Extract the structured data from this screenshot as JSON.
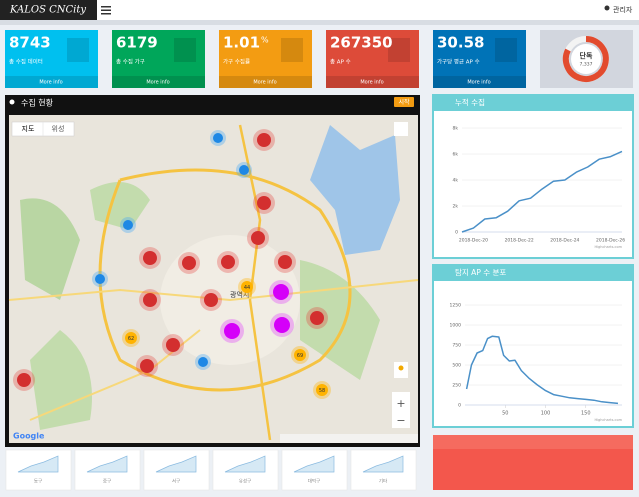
{
  "header": {
    "logo": "KALOS CNCity",
    "user": "관리자"
  },
  "stat_cards": [
    {
      "value": "8743",
      "label": "총 수집 데이터",
      "link": "More info"
    },
    {
      "value": "6179",
      "label": "총 수집 가구",
      "link": "More info"
    },
    {
      "value": "1.01",
      "unit": "%",
      "label": "가구 수집률",
      "link": "More info"
    },
    {
      "value": "267350",
      "label": "총 AP 수",
      "link": "More info"
    },
    {
      "value": "30.58",
      "label": "가구당 평균 AP 수",
      "link": "More info"
    }
  ],
  "gauge_card": {
    "label": "단독",
    "value": "7,337"
  },
  "map_panel": {
    "title": "수집 현황",
    "button": "시작",
    "tabs": [
      "지도",
      "위성"
    ],
    "city_label": "광역시",
    "clusters": [
      "44",
      "62",
      "69",
      "58"
    ],
    "attribution": "Google"
  },
  "charts": [
    {
      "type": "line",
      "title": "누적 수집",
      "categories": [
        null,
        "2018-Dec-20",
        null,
        null,
        null,
        "2018-Dec-22",
        null,
        null,
        null,
        "2018-Dec-24",
        null,
        null,
        null,
        "2018-Dec-26",
        null
      ],
      "values": [
        0,
        300,
        1000,
        1100,
        1600,
        2400,
        2600,
        3300,
        3900,
        4000,
        4600,
        5000,
        5600,
        5800,
        6200
      ],
      "ylim": [
        0,
        8000
      ],
      "yticks": [
        0,
        {
          "value": 2000,
          "label": "2k"
        },
        {
          "value": 4000,
          "label": "4k"
        },
        {
          "value": 6000,
          "label": "6k"
        },
        {
          "value": 8000,
          "label": "8k"
        }
      ],
      "color": "#4a90c8",
      "credit": "Highcharts.com"
    },
    {
      "type": "line",
      "title": "탐지 AP 수 분포",
      "x": [
        2,
        8,
        15,
        22,
        28,
        34,
        42,
        48,
        55,
        62,
        70,
        80,
        90,
        100,
        110,
        120,
        130,
        140,
        150,
        160,
        170,
        180,
        190
      ],
      "values": [
        200,
        500,
        650,
        680,
        830,
        860,
        850,
        620,
        550,
        560,
        430,
        330,
        250,
        180,
        130,
        110,
        90,
        80,
        70,
        60,
        40,
        30,
        20
      ],
      "xlim": [
        0,
        195
      ],
      "xticks": [
        50,
        100,
        150
      ],
      "ylim": [
        0,
        1350
      ],
      "yticks": [
        0,
        250,
        500,
        750,
        1000,
        1250
      ],
      "color": "#4a90c8",
      "credit": "Highcharts.com"
    }
  ],
  "districts": [
    "동구",
    "중구",
    "서구",
    "유성구",
    "대덕구",
    "기타"
  ]
}
